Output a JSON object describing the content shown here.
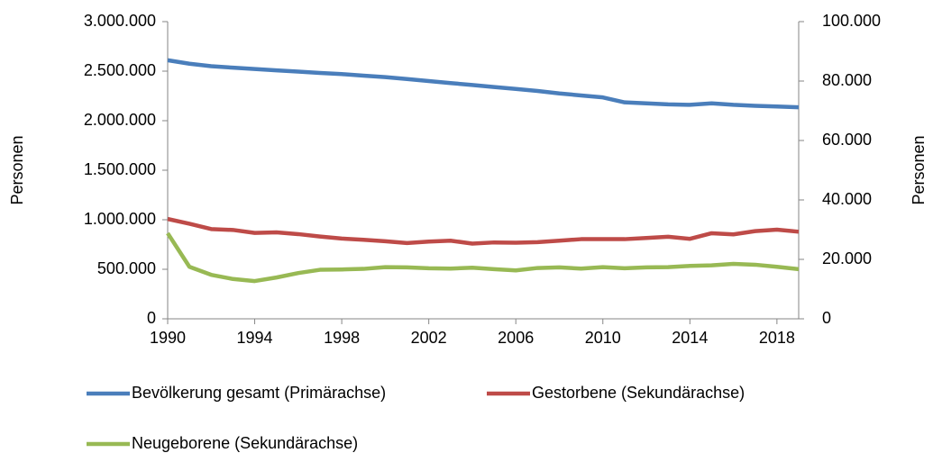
{
  "chart_data": {
    "type": "line",
    "x": [
      1990,
      1991,
      1992,
      1993,
      1994,
      1995,
      1996,
      1997,
      1998,
      1999,
      2000,
      2001,
      2002,
      2003,
      2004,
      2005,
      2006,
      2007,
      2008,
      2009,
      2010,
      2011,
      2012,
      2013,
      2014,
      2015,
      2016,
      2017,
      2018,
      2019
    ],
    "xlim": [
      1990,
      2019
    ],
    "xticks": [
      1990,
      1994,
      1998,
      2002,
      2006,
      2010,
      2014,
      2018
    ],
    "ylabel": "Personen",
    "y2label": "Personen",
    "ylim": [
      0,
      3000000
    ],
    "yticks": [
      0,
      {
        "value": 500000,
        "label": "500.000"
      },
      {
        "value": 1000000,
        "label": "1.000.000"
      },
      {
        "value": 1500000,
        "label": "1.500.000"
      },
      {
        "value": 2000000,
        "label": "2.000.000"
      },
      {
        "value": 2500000,
        "label": "2.500.000"
      },
      {
        "value": 3000000,
        "label": "3.000.000"
      }
    ],
    "y2lim": [
      0,
      100000
    ],
    "y2ticks": [
      0,
      {
        "value": 20000,
        "label": "20.000"
      },
      {
        "value": 40000,
        "label": "40.000"
      },
      {
        "value": 60000,
        "label": "60.000"
      },
      {
        "value": 80000,
        "label": "80.000"
      },
      {
        "value": 100000,
        "label": "100.000"
      }
    ],
    "grid": false,
    "legend": "bottom",
    "series": [
      {
        "name": "Bevölkerung gesamt (Primärachse)",
        "color": "#4a7ebb",
        "axis": "y",
        "values": [
          2610000,
          2575000,
          2550000,
          2535000,
          2522000,
          2508000,
          2495000,
          2482000,
          2470000,
          2455000,
          2440000,
          2420000,
          2400000,
          2380000,
          2360000,
          2340000,
          2320000,
          2300000,
          2275000,
          2255000,
          2235000,
          2185000,
          2175000,
          2165000,
          2160000,
          2175000,
          2160000,
          2150000,
          2143000,
          2135000
        ]
      },
      {
        "name": "Gestorbene (Sekundärachse)",
        "color": "#be4b48",
        "axis": "y2",
        "values": [
          33600,
          32000,
          30200,
          29900,
          28900,
          29100,
          28500,
          27700,
          27000,
          26600,
          26100,
          25500,
          26000,
          26300,
          25300,
          25700,
          25600,
          25800,
          26300,
          26800,
          26800,
          26800,
          27200,
          27600,
          26900,
          28800,
          28400,
          29500,
          30000,
          29300
        ]
      },
      {
        "name": "Neugeborene (Sekundärachse)",
        "color": "#98b954",
        "axis": "y2",
        "values": [
          28800,
          17500,
          14800,
          13400,
          12700,
          13900,
          15400,
          16500,
          16600,
          16800,
          17400,
          17300,
          17000,
          16900,
          17200,
          16700,
          16300,
          17100,
          17300,
          16900,
          17400,
          17000,
          17300,
          17400,
          17800,
          18000,
          18500,
          18200,
          17500,
          16700
        ]
      }
    ]
  }
}
